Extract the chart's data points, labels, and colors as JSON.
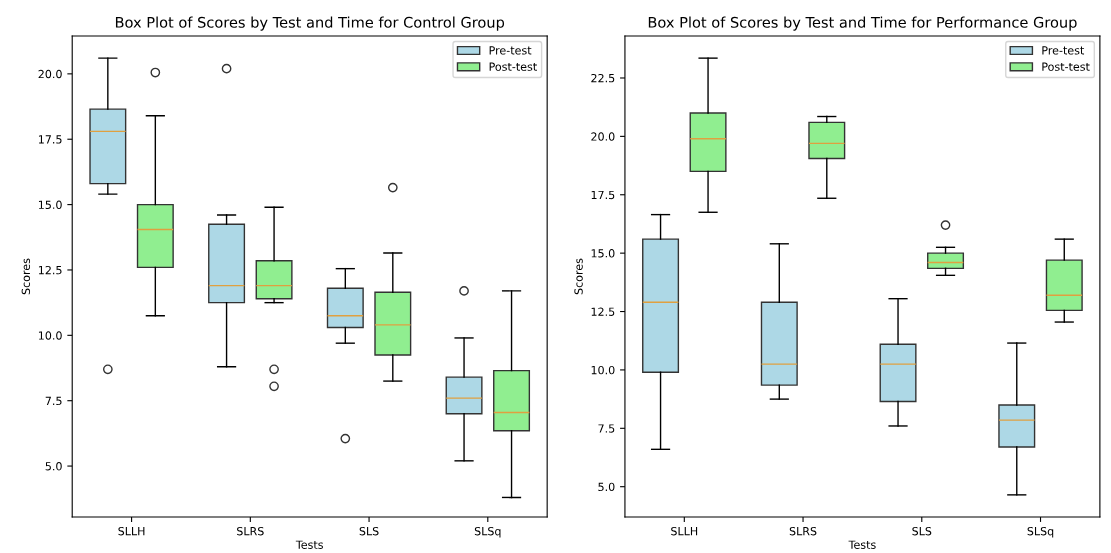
{
  "chart_data": [
    {
      "type": "box",
      "title": "Box Plot of Scores by Test and Time for Control Group",
      "xlabel": "Tests",
      "ylabel": "Scores",
      "categories": [
        "SLLH",
        "SLRS",
        "SLS",
        "SLSq"
      ],
      "legend": "top right",
      "ylim": [
        3.05,
        21.45
      ],
      "yticks": [
        {
          "value": 5,
          "label": "5.0"
        },
        {
          "value": 7.5,
          "label": "7.5"
        },
        {
          "value": 10,
          "label": "10.0"
        },
        {
          "value": 12.5,
          "label": "12.5"
        },
        {
          "value": 15,
          "label": "15.0"
        },
        {
          "value": 17.5,
          "label": "17.5"
        },
        {
          "value": 20,
          "label": "20.0"
        }
      ],
      "series": [
        {
          "name": "Pre-test",
          "color": "#add8e6",
          "boxes": [
            {
              "low": 15.4,
              "q1": 15.8,
              "median": 17.8,
              "q3": 18.65,
              "high": 20.6,
              "outliers": [
                8.7
              ]
            },
            {
              "low": 8.8,
              "q1": 11.25,
              "median": 11.9,
              "q3": 14.25,
              "high": 14.6,
              "outliers": [
                20.2
              ]
            },
            {
              "low": 9.7,
              "q1": 10.3,
              "median": 10.75,
              "q3": 11.8,
              "high": 12.55,
              "outliers": [
                6.05
              ]
            },
            {
              "low": 5.2,
              "q1": 7.0,
              "median": 7.6,
              "q3": 8.4,
              "high": 9.9,
              "outliers": [
                11.7
              ]
            }
          ]
        },
        {
          "name": "Post-test",
          "color": "#90ee90",
          "boxes": [
            {
              "low": 10.75,
              "q1": 12.6,
              "median": 14.05,
              "q3": 15.0,
              "high": 18.4,
              "outliers": [
                20.05
              ]
            },
            {
              "low": 11.25,
              "q1": 11.4,
              "median": 11.9,
              "q3": 12.85,
              "high": 14.9,
              "outliers": [
                8.7,
                8.05
              ]
            },
            {
              "low": 8.25,
              "q1": 9.25,
              "median": 10.4,
              "q3": 11.65,
              "high": 13.15,
              "outliers": [
                15.65
              ]
            },
            {
              "low": 3.8,
              "q1": 6.35,
              "median": 7.05,
              "q3": 8.65,
              "high": 11.7
            }
          ]
        }
      ]
    },
    {
      "type": "box",
      "title": "Box Plot of Scores by Test and Time for Performance Group",
      "xlabel": "Tests",
      "ylabel": "Scores",
      "categories": [
        "SLLH",
        "SLRS",
        "SLS",
        "SLSq"
      ],
      "legend": "top right",
      "ylim": [
        3.7,
        24.3
      ],
      "yticks": [
        {
          "value": 5,
          "label": "5.0"
        },
        {
          "value": 7.5,
          "label": "7.5"
        },
        {
          "value": 10,
          "label": "10.0"
        },
        {
          "value": 12.5,
          "label": "12.5"
        },
        {
          "value": 15,
          "label": "15.0"
        },
        {
          "value": 17.5,
          "label": "17.5"
        },
        {
          "value": 20,
          "label": "20.0"
        },
        {
          "value": 22.5,
          "label": "22.5"
        }
      ],
      "series": [
        {
          "name": "Pre-test",
          "color": "#add8e6",
          "boxes": [
            {
              "low": 6.6,
              "q1": 9.9,
              "median": 12.9,
              "q3": 15.6,
              "high": 16.65
            },
            {
              "low": 8.75,
              "q1": 9.35,
              "median": 10.25,
              "q3": 12.9,
              "high": 15.4
            },
            {
              "low": 7.6,
              "q1": 8.65,
              "median": 10.25,
              "q3": 11.1,
              "high": 13.05
            },
            {
              "low": 4.65,
              "q1": 6.7,
              "median": 7.85,
              "q3": 8.5,
              "high": 11.15
            }
          ]
        },
        {
          "name": "Post-test",
          "color": "#90ee90",
          "boxes": [
            {
              "low": 16.75,
              "q1": 18.5,
              "median": 19.9,
              "q3": 21.0,
              "high": 23.35
            },
            {
              "low": 17.35,
              "q1": 19.05,
              "median": 19.7,
              "q3": 20.6,
              "high": 20.85
            },
            {
              "low": 14.05,
              "q1": 14.35,
              "median": 14.6,
              "q3": 15.0,
              "high": 15.25,
              "outliers": [
                16.2
              ]
            },
            {
              "low": 12.05,
              "q1": 12.55,
              "median": 13.2,
              "q3": 14.7,
              "high": 15.6
            }
          ]
        }
      ]
    }
  ]
}
